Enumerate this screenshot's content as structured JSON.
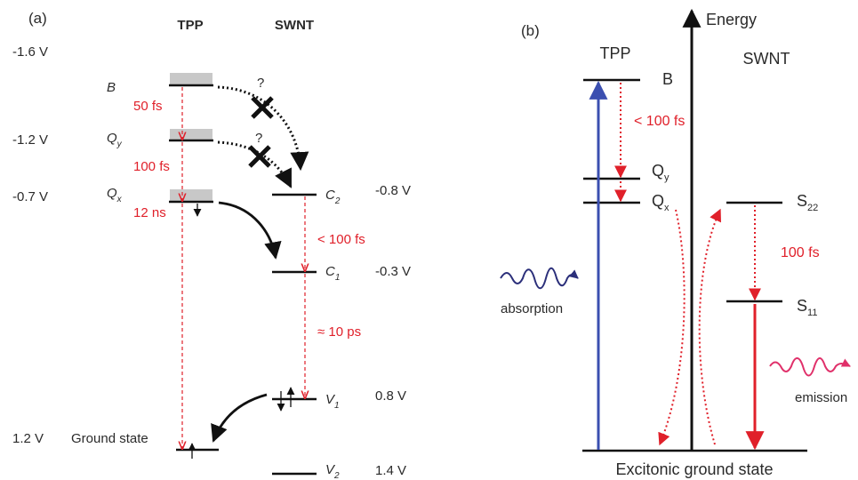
{
  "colors": {
    "red": "#e0202a",
    "blue": "#3b4fb0",
    "black": "#111111",
    "gray": "#c8c8c8"
  },
  "panel_a": {
    "label": "(a)",
    "col_tpp": "TPP",
    "col_swnt": "SWNT",
    "potentials_left": [
      "-1.6 V",
      "-1.2 V",
      "-0.7 V",
      "1.2 V"
    ],
    "ground_label": "Ground state",
    "tpp_levels": {
      "b": "B",
      "qy_main": "Q",
      "qy_sub": "y",
      "qx_main": "Q",
      "qx_sub": "x"
    },
    "times": {
      "b_to_qy": "50 fs",
      "qy_to_qx": "100 fs",
      "qx_to_gs": "12 ns",
      "c2_to_c1": "< 100 fs",
      "c1_to_v1": "≈ 10 ps"
    },
    "question": "?",
    "swnt_levels": [
      {
        "main": "C",
        "sub": "2",
        "potential": "-0.8 V"
      },
      {
        "main": "C",
        "sub": "1",
        "potential": "-0.3 V"
      },
      {
        "main": "V",
        "sub": "1",
        "potential": "0.8 V"
      },
      {
        "main": "V",
        "sub": "2",
        "potential": "1.4 V"
      }
    ]
  },
  "panel_b": {
    "label": "(b)",
    "energy": "Energy",
    "tpp": "TPP",
    "swnt": "SWNT",
    "b": "B",
    "qy_main": "Q",
    "qy_sub": "y",
    "qx_main": "Q",
    "qx_sub": "x",
    "s22_main": "S",
    "s22_sub": "22",
    "s11_main": "S",
    "s11_sub": "11",
    "t1": "< 100 fs",
    "t2": "100 fs",
    "absorption": "absorption",
    "emission": "emission",
    "ground": "Excitonic ground state"
  }
}
